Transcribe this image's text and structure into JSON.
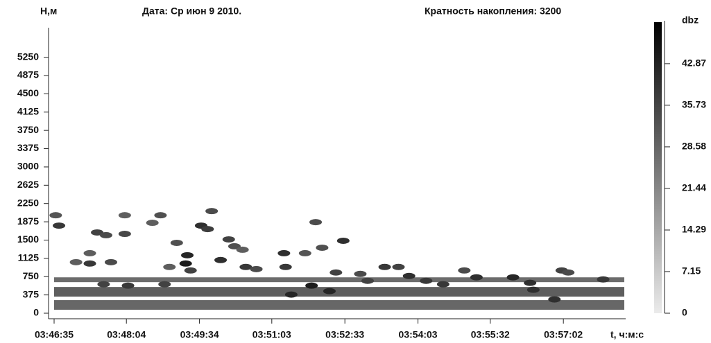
{
  "chart_data": {
    "type": "heatmap",
    "y_label": "Н,м",
    "date": "Дата: Ср июн 9 2010.",
    "accumulation": "Кратность накопления: 3200",
    "x_label": "t, ч:м:с",
    "colorbar_label": "dbz",
    "xlim": [
      0,
      702
    ],
    "xticks": [
      {
        "value": 0,
        "label": "03:46:35"
      },
      {
        "value": 89,
        "label": "03:48:04"
      },
      {
        "value": 179,
        "label": "03:49:34"
      },
      {
        "value": 268,
        "label": "03:51:03"
      },
      {
        "value": 358,
        "label": "03:52:33"
      },
      {
        "value": 448,
        "label": "03:54:03"
      },
      {
        "value": 537,
        "label": "03:55:32"
      },
      {
        "value": 627,
        "label": "03:57:02"
      }
    ],
    "ylim": [
      0,
      5600
    ],
    "yticks": [
      0,
      375,
      750,
      1125,
      1500,
      1875,
      2250,
      2625,
      3000,
      3375,
      3750,
      4125,
      4500,
      4875,
      5250
    ],
    "clim": [
      0,
      50
    ],
    "cticks": [
      0,
      7.15,
      14.29,
      21.44,
      28.58,
      35.73,
      42.87
    ],
    "layers": {
      "bottom": [
        637,
        340,
        71
      ],
      "top": [
        736,
        538,
        269
      ],
      "values": [
        27,
        30,
        28
      ]
    },
    "x": [
      2,
      6,
      53,
      64,
      87,
      87,
      121,
      131,
      194,
      181,
      189,
      151,
      164,
      162,
      168,
      142,
      44,
      44,
      70,
      27,
      215,
      222,
      205,
      232,
      236,
      249,
      283,
      285,
      309,
      322,
      330,
      356,
      347,
      377,
      407,
      424,
      437,
      458,
      505,
      520,
      565,
      586,
      625,
      633,
      676,
      317,
      292,
      339,
      136,
      91,
      61,
      386,
      479,
      616,
      590
    ],
    "y": [
      2009,
      1797,
      1656,
      1600,
      1627,
      2009,
      1854,
      2009,
      2094,
      1797,
      1726,
      1443,
      1189,
      1019,
      877,
      948,
      1231,
      1019,
      1047,
      1047,
      1514,
      1373,
      1090,
      1302,
      948,
      905,
      1231,
      948,
      1231,
      1868,
      1344,
      1486,
      835,
      806,
      948,
      948,
      764,
      665,
      877,
      736,
      736,
      623,
      877,
      835,
      693,
      566,
      382,
      453,
      594,
      566,
      594,
      665,
      594,
      283,
      481
    ],
    "values": [
      32,
      38,
      36,
      34,
      35,
      30,
      30,
      33,
      34,
      40,
      37,
      33,
      42,
      44,
      36,
      30,
      30,
      38,
      34,
      30,
      36,
      33,
      40,
      30,
      38,
      34,
      40,
      38,
      32,
      34,
      33,
      40,
      36,
      34,
      38,
      36,
      40,
      38,
      34,
      40,
      42,
      40,
      36,
      34,
      38,
      44,
      42,
      42,
      36,
      38,
      36,
      36,
      38,
      40,
      40
    ]
  }
}
